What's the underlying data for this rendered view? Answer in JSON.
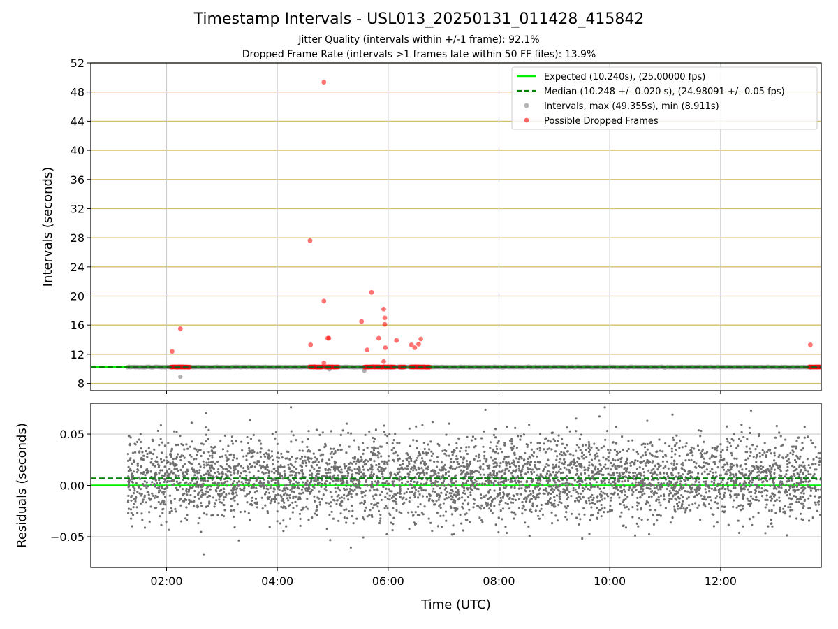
{
  "chart_data": [
    {
      "type": "scatter",
      "title": "Timestamp Intervals - USL013_20250131_011428_415842",
      "subtitle_lines": [
        "Jitter Quality (intervals within +/-1 frame): 92.1%",
        "Dropped Frame Rate (intervals >1 frames late within 50 FF files): 13.9%"
      ],
      "xlabel": "",
      "ylabel": "Intervals (seconds)",
      "x_units": "hours UTC",
      "xlim": [
        0.633,
        13.817
      ],
      "ylim": [
        7,
        52
      ],
      "x_ticks": [
        2,
        4,
        6,
        8,
        10,
        12
      ],
      "x_tick_labels": [
        "02:00",
        "04:00",
        "06:00",
        "08:00",
        "10:00",
        "12:00"
      ],
      "y_ticks": [
        8,
        12,
        16,
        20,
        24,
        28,
        32,
        36,
        40,
        44,
        48,
        52
      ],
      "grid": true,
      "legend_placement": "upper-right",
      "legend": [
        "Expected (10.240s), (25.00000 fps)",
        "Median (10.248 +/- 0.020 s), (24.98091 +/- 0.05 fps)",
        "Intervals, max (49.355s), min (8.911s)",
        "Possible Dropped Frames"
      ],
      "series": [
        {
          "name": "Expected (10.240s), (25.00000 fps)",
          "kind": "hline",
          "y": 10.24,
          "color": "#00ee00"
        },
        {
          "name": "Median (10.248 +/- 0.020 s), (24.98091 +/- 0.05 fps)",
          "kind": "hline-dashed",
          "y": 10.248,
          "color": "#007f00"
        },
        {
          "name": "Intervals, max (49.355s), min (8.911s)",
          "kind": "scatter",
          "x_range": [
            1.3,
            13.817
          ],
          "y_typical": 10.248,
          "color": "#808080",
          "outliers": [
            [
              2.25,
              8.911
            ],
            [
              4.94,
              9.95
            ],
            [
              5.57,
              9.75
            ]
          ]
        },
        {
          "name": "Possible Dropped Frames",
          "kind": "scatter",
          "color": "#ff0000",
          "clusters": [
            [
              2.08,
              2.42
            ],
            [
              4.58,
              4.82
            ],
            [
              4.87,
              5.1
            ],
            [
              5.57,
              6.12
            ],
            [
              6.2,
              6.3
            ],
            [
              6.4,
              6.75
            ],
            [
              13.6,
              13.817
            ]
          ],
          "cluster_y": 10.26,
          "points": [
            [
              2.1,
              12.4
            ],
            [
              2.25,
              15.5
            ],
            [
              4.59,
              27.6
            ],
            [
              4.6,
              13.3
            ],
            [
              4.84,
              49.355
            ],
            [
              4.84,
              19.3
            ],
            [
              4.84,
              10.8
            ],
            [
              4.91,
              14.2
            ],
            [
              4.93,
              14.2
            ],
            [
              5.52,
              16.5
            ],
            [
              5.62,
              12.6
            ],
            [
              5.7,
              20.5
            ],
            [
              5.83,
              14.2
            ],
            [
              5.92,
              11.0
            ],
            [
              5.92,
              18.2
            ],
            [
              5.94,
              17.0
            ],
            [
              5.94,
              16.1
            ],
            [
              5.95,
              12.9
            ],
            [
              6.15,
              13.9
            ],
            [
              6.42,
              13.3
            ],
            [
              6.48,
              12.9
            ],
            [
              6.55,
              13.4
            ],
            [
              6.59,
              14.1
            ],
            [
              13.62,
              13.3
            ]
          ]
        }
      ]
    },
    {
      "type": "scatter",
      "xlabel": "Time (UTC)",
      "ylabel": "Residuals (seconds)",
      "x_units": "hours UTC",
      "xlim": [
        0.633,
        13.817
      ],
      "ylim": [
        -0.08,
        0.08
      ],
      "x_ticks": [
        2,
        4,
        6,
        8,
        10,
        12
      ],
      "x_tick_labels": [
        "02:00",
        "04:00",
        "06:00",
        "08:00",
        "10:00",
        "12:00"
      ],
      "y_ticks": [
        -0.05,
        0.0,
        0.05
      ],
      "y_tick_labels": [
        "−0.05",
        "0.00",
        "0.05"
      ],
      "grid": true,
      "series": [
        {
          "name": "",
          "kind": "hline",
          "y": 0.0,
          "color": "#00ee00"
        },
        {
          "name": "",
          "kind": "hline-dashed",
          "y": 0.007,
          "color": "#007f00"
        },
        {
          "name": "",
          "kind": "scatter",
          "x_range": [
            1.3,
            13.817
          ],
          "y_center": 0.007,
          "y_spread": 0.02,
          "color": "#707070"
        }
      ]
    }
  ]
}
